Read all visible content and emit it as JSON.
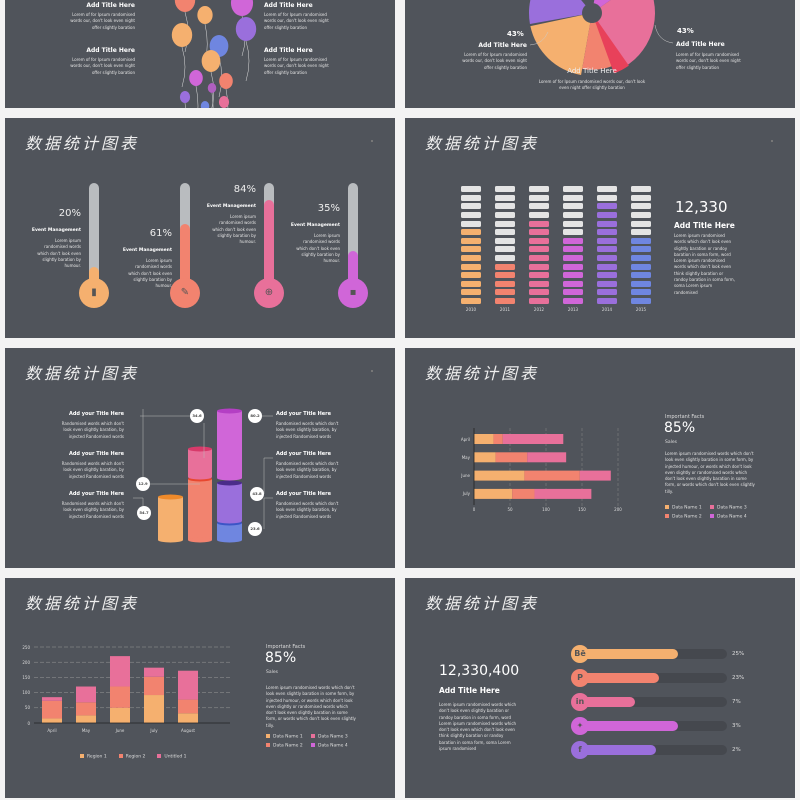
{
  "common": {
    "slide_title": "数据统计图表"
  },
  "balloons": {
    "items": [
      {
        "title": "Add Title Here",
        "text": "Lorem of for Ipsum randomised words our, don't look even night offer slightly baration"
      },
      {
        "title": "Add Title Here",
        "text": "Lorem of for Ipsum randomised words our, don't look even night offer slightly baration"
      },
      {
        "title": "Add Title Here",
        "text": "Lorem of for Ipsum randomised words our, don't look even night offer slightly baration"
      },
      {
        "title": "Add Title Here",
        "text": "Lorem of for Ipsum randomised words our, don't look even night offer slightly baration"
      }
    ]
  },
  "pie": {
    "left": {
      "pct": "43%",
      "title": "Add Title Here",
      "text": "Lorem of for Ipsum randomised words our, don't look even night offer slightly baration"
    },
    "right": {
      "pct": "43%",
      "title": "Add Title Here",
      "text": "Lorem of for Ipsum randomised words our, don't look even night offer slightly baration"
    },
    "center": {
      "title": "Add Title Here",
      "text": "Lorem of for Ipsum randomised words our, don't look even night offer slightly baration"
    },
    "colors": [
      "#f5b06f",
      "#f2836f",
      "#e8709a",
      "#d066d8",
      "#9a6fdc",
      "#e8415a"
    ]
  },
  "thermo": {
    "items": [
      {
        "pct": "20%",
        "value": 20,
        "title": "Event Management",
        "text": "Lorem ipsum randomised words which don't look even slightly baration by humour.",
        "color": "#f5b06f",
        "icon": "book-icon",
        "glyph": "▮"
      },
      {
        "pct": "61%",
        "value": 61,
        "title": "Event Management",
        "text": "Lorem ipsum randomised words which don't look even slightly baration by humour.",
        "color": "#f2836f",
        "icon": "edit-icon",
        "glyph": "✎"
      },
      {
        "pct": "84%",
        "value": 84,
        "title": "Event Management",
        "text": "Lorem ipsum randomised words which don't look even slightly baration by humour.",
        "color": "#e8709a",
        "icon": "globe-icon",
        "glyph": "⊕"
      },
      {
        "pct": "35%",
        "value": 35,
        "title": "Event Management",
        "text": "Lorem ipsum randomised words which don't look even slightly baration by humour.",
        "color": "#d066d8",
        "icon": "chat-icon",
        "glyph": "▪"
      }
    ]
  },
  "blocks": {
    "big": "12,330",
    "title": "Add Title Here",
    "text": "Lorem ipsum randomised words which don't look even slightly baration or randoy baration in soma form, word Lorem ipsum randomised words which don't look even think slightly baration or randoy baration in soma form, soma Lorem ipsum randomised",
    "chart_data": {
      "type": "bar",
      "categories": [
        "2010",
        "2011",
        "2012",
        "2013",
        "2014",
        "2015"
      ],
      "values": [
        9,
        5,
        10,
        8,
        12,
        8
      ],
      "ylim": [
        0,
        14
      ],
      "colors": [
        "#f5b06f",
        "#f2836f",
        "#e8709a",
        "#d066d8",
        "#9a6fdc",
        "#6f86e0"
      ],
      "empty_color": "#e4e4e4"
    }
  },
  "cylinders": {
    "left": [
      {
        "title": "Add your Title Here",
        "text": "Randomised words which don't look even slightly baration, by injected Randomised words"
      },
      {
        "title": "Add your Title Here",
        "text": "Randomised words which don't look even slightly baration, by injected Randomised words"
      },
      {
        "title": "Add your Title Here",
        "text": "Randomised words which don't look even slightly baration, by injected Randomised words"
      }
    ],
    "right": [
      {
        "title": "Add your Title Here",
        "text": "Randomised words which don't look even slightly baration, by injected Randomised words"
      },
      {
        "title": "Add your Title Here",
        "text": "Randomised words which don't look even slightly baration, by injected Randomised words"
      },
      {
        "title": "Add your Title Here",
        "text": "Randomised words which don't look even slightly baration, by injected Randomised words"
      }
    ],
    "labels": [
      "34.6",
      "80.2",
      "12.9",
      "43.8",
      "54.7",
      "23.6"
    ]
  },
  "hbar": {
    "facts": "Important Facts",
    "pct": "85%",
    "sales": "Sales",
    "text": "Lorem ipsum randomised words which don't look even slightly baration in some form, by injected humour, or words which don't look even slightly or randomised words which don't look even slightly baration in some form, or words which don't look even slightly tilly.",
    "legend": [
      "Data Name 1",
      "Data Name 3",
      "Data Name 2",
      "Data Name 4"
    ],
    "legend_colors": [
      "#f5b06f",
      "#e8709a",
      "#f2836f",
      "#d066d8"
    ],
    "chart_data": {
      "type": "bar",
      "orientation": "horizontal",
      "stacked": true,
      "categories": [
        "April",
        "May",
        "June",
        "July"
      ],
      "series": [
        {
          "values": [
            27,
            30,
            70,
            53
          ],
          "color": "#f5b06f"
        },
        {
          "values": [
            13,
            44,
            77,
            31
          ],
          "color": "#f2836f"
        },
        {
          "values": [
            84,
            54,
            43,
            79
          ],
          "color": "#e8709a"
        }
      ],
      "xticks": [
        "0",
        "50",
        "100",
        "150",
        "200"
      ],
      "xlim": [
        0,
        200
      ],
      "grid": true
    }
  },
  "vbar": {
    "facts": "Important Facts",
    "pct": "85%",
    "sales": "Sales",
    "text": "Lorem ipsum randomised words which don't look even slightly baration in some form, by injected humour, or words which don't look even slightly or randomised words which don't look even slightly baration in some form, or words which don't look even slightly tilly.",
    "legend": [
      "Data Name 1",
      "Data Name 3",
      "Data Name 2",
      "Data Name 4"
    ],
    "legend_colors": [
      "#f5b06f",
      "#e8709a",
      "#f2836f",
      "#d066d8"
    ],
    "chart_data": {
      "type": "bar",
      "stacked": true,
      "categories": [
        "April",
        "May",
        "June",
        "July",
        "August"
      ],
      "series": [
        {
          "name": "Region 1",
          "values": [
            15,
            25,
            50,
            92,
            32
          ],
          "color": "#f5b06f"
        },
        {
          "name": "Region 2",
          "values": [
            58,
            43,
            70,
            60,
            45
          ],
          "color": "#f2836f"
        },
        {
          "name": "Untitled 1",
          "values": [
            12,
            52,
            100,
            30,
            95
          ],
          "color": "#e8709a"
        }
      ],
      "yticks": [
        "0",
        "50",
        "100",
        "150",
        "200",
        "250"
      ],
      "ylim": [
        0,
        250
      ],
      "grid": true,
      "legend": "bottom"
    }
  },
  "social": {
    "big": "12,330,400",
    "title": "Add Title Here",
    "text": "Lorem ipsum randomised words which don't look even slightly baration or randoy baration in soma form, word Lorem ipsum randomised words which don't look even which don't look even think slightly baration or randoy baration in soma form, soma Lorem ipsum randomised",
    "items": [
      {
        "icon": "behance-icon",
        "glyph": "Bē",
        "pct": "25%",
        "fill": 0.68,
        "color": "#f5b06f"
      },
      {
        "icon": "pinterest-icon",
        "glyph": "P",
        "pct": "23%",
        "fill": 0.56,
        "color": "#f2836f"
      },
      {
        "icon": "linkedin-icon",
        "glyph": "in",
        "pct": "7%",
        "fill": 0.4,
        "color": "#e8709a"
      },
      {
        "icon": "twitter-icon",
        "glyph": "✦",
        "pct": "3%",
        "fill": 0.68,
        "color": "#d066d8"
      },
      {
        "icon": "facebook-icon",
        "glyph": "f",
        "pct": "2%",
        "fill": 0.54,
        "color": "#9a6fdc"
      }
    ]
  }
}
